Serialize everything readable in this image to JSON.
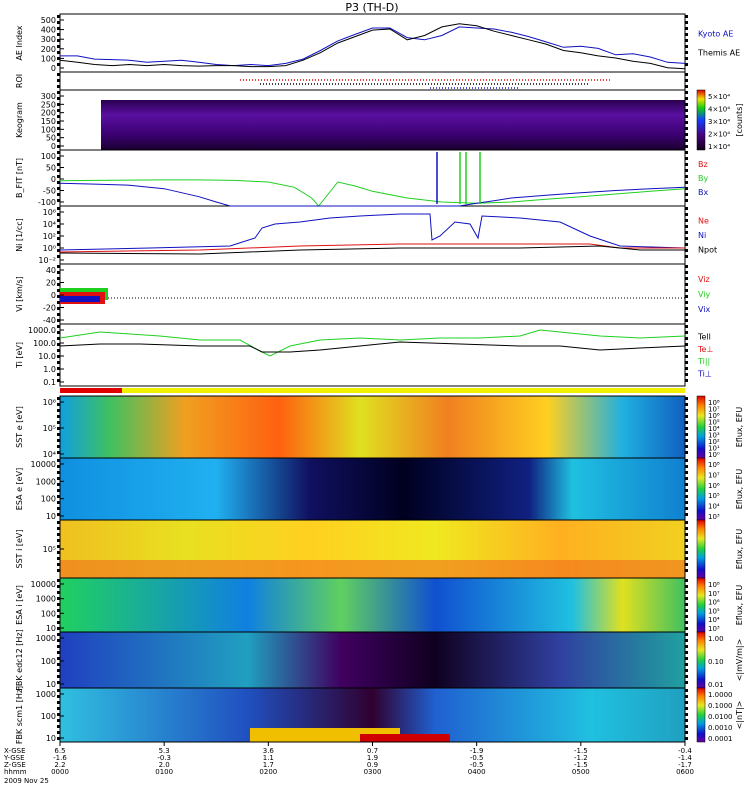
{
  "title": "P3 (TH-D)",
  "colors": {
    "blue": "#1010c0",
    "red": "#e01010",
    "green": "#20d020",
    "black": "#000000"
  },
  "chart_data": [
    {
      "type": "line",
      "id": "ae",
      "ylabel": "AE Index",
      "yticks": [
        "500",
        "400",
        "300",
        "200",
        "100",
        "0"
      ],
      "ylim": [
        0,
        540
      ],
      "series": [
        {
          "name": "Kyoto AE",
          "color": "blue",
          "x": [
            0,
            10,
            20,
            30,
            40,
            50,
            60,
            70,
            80,
            90,
            100,
            110,
            120,
            130,
            140,
            150,
            160,
            170,
            180,
            190,
            200,
            210,
            220,
            230,
            240,
            250,
            260,
            270,
            280,
            290,
            300,
            310,
            320,
            330,
            340,
            350,
            360
          ],
          "values": [
            150,
            150,
            120,
            115,
            110,
            90,
            100,
            110,
            90,
            70,
            60,
            70,
            60,
            80,
            120,
            200,
            290,
            350,
            410,
            410,
            320,
            300,
            340,
            420,
            410,
            400,
            370,
            330,
            280,
            230,
            240,
            220,
            160,
            170,
            140,
            90,
            80
          ]
        },
        {
          "name": "Themis AE",
          "color": "black",
          "x": [
            0,
            10,
            20,
            30,
            40,
            50,
            60,
            70,
            80,
            90,
            100,
            110,
            120,
            130,
            140,
            150,
            160,
            170,
            180,
            190,
            200,
            210,
            220,
            230,
            240,
            250,
            260,
            270,
            280,
            290,
            300,
            310,
            320,
            330,
            340,
            350,
            360
          ],
          "values": [
            110,
            90,
            70,
            60,
            70,
            60,
            70,
            60,
            55,
            60,
            60,
            50,
            50,
            60,
            110,
            180,
            270,
            330,
            390,
            400,
            300,
            340,
            420,
            450,
            430,
            380,
            340,
            300,
            260,
            200,
            180,
            150,
            130,
            100,
            80,
            40,
            30
          ]
        }
      ]
    },
    {
      "type": "line",
      "id": "roi",
      "ylabel": "ROI"
    },
    {
      "type": "heatmap",
      "id": "keogram",
      "ylabel": "Keogram",
      "yticks": [
        "300",
        "250",
        "200",
        "150",
        "100",
        "50",
        "0"
      ],
      "colorbar_ticks": [
        "5×10⁴",
        "4×10⁴",
        "3×10⁴",
        "2×10⁴",
        "1×10⁴"
      ],
      "colorbar_unit": "[counts]"
    },
    {
      "type": "line",
      "id": "bfield",
      "ylabel": "B_FIT [nT]",
      "yticks": [
        "100",
        "50",
        "0",
        "-50",
        "-100"
      ],
      "ylim": [
        -110,
        100
      ],
      "series": [
        {
          "name": "Bz",
          "color": "red",
          "x": [],
          "values": []
        },
        {
          "name": "By",
          "color": "green",
          "x": [
            0,
            20,
            40,
            60,
            80,
            100,
            120,
            135,
            145,
            149,
            160,
            170,
            180,
            200,
            220,
            240,
            260,
            280,
            300,
            320,
            340,
            360
          ],
          "values": [
            -15,
            -14,
            -13,
            -12,
            -12,
            -14,
            -20,
            -40,
            -80,
            -110,
            -20,
            -35,
            -55,
            -80,
            -95,
            -100,
            -95,
            -85,
            -75,
            -65,
            -55,
            -45
          ]
        },
        {
          "name": "Bx",
          "color": "blue",
          "x": [
            0,
            20,
            40,
            60,
            80,
            90,
            98,
            150,
            230,
            240,
            250,
            260,
            280,
            300,
            320,
            340,
            360
          ],
          "values": [
            -25,
            -28,
            -32,
            -45,
            -75,
            -95,
            -110,
            -110,
            -110,
            -100,
            -90,
            -80,
            -70,
            -60,
            -52,
            -45,
            -40
          ]
        }
      ]
    },
    {
      "type": "line",
      "id": "density",
      "ylabel": "Ni [1/cc]",
      "yticks": [
        "10⁶",
        "10⁴",
        "10²",
        "10⁰",
        "10⁻²"
      ],
      "series": [
        {
          "name": "Ne",
          "color": "red",
          "x": [],
          "values": []
        },
        {
          "name": "Ni",
          "color": "blue",
          "x": [],
          "values": []
        },
        {
          "name": "Npot",
          "color": "black",
          "x": [],
          "values": []
        }
      ]
    },
    {
      "type": "line",
      "id": "velocity",
      "ylabel": "Vi [km/s]",
      "yticks": [
        "40",
        "20",
        "0",
        "-20",
        "-40"
      ],
      "ylim": [
        -50,
        50
      ],
      "series": [
        {
          "name": "Viz",
          "color": "red",
          "x": [],
          "values": []
        },
        {
          "name": "Viy",
          "color": "green",
          "x": [],
          "values": []
        },
        {
          "name": "Vix",
          "color": "blue",
          "x": [],
          "values": []
        }
      ]
    },
    {
      "type": "line",
      "id": "temperature",
      "ylabel": "Ti [eV]",
      "yticks": [
        "1000.0",
        "100.0",
        "10.0",
        "1.0",
        "0.1"
      ],
      "series": [
        {
          "name": "Tell",
          "color": "black",
          "x": [],
          "values": []
        },
        {
          "name": "Te⊥",
          "color": "red",
          "x": [],
          "values": []
        },
        {
          "name": "Ti||",
          "color": "green",
          "x": [],
          "values": []
        },
        {
          "name": "Ti⊥",
          "color": "blue",
          "x": [],
          "values": []
        }
      ]
    },
    {
      "type": "heatmap",
      "id": "sst_e",
      "ylabel": "SST e [eV]",
      "yticks": [
        "10⁶",
        "10⁵",
        "10⁴"
      ],
      "colorbar_ticks": [
        "10⁸",
        "10⁷",
        "10⁶",
        "10⁵",
        "10⁴",
        "10³",
        "10²",
        "10¹",
        "10⁰"
      ],
      "colorbar_unit": "Eflux, EFU"
    },
    {
      "type": "heatmap",
      "id": "esa_e",
      "ylabel": "ESA e [eV]",
      "yticks": [
        "10000",
        "1000",
        "100",
        "10"
      ],
      "colorbar_ticks": [
        "10⁸",
        "10⁷",
        "10⁶",
        "10⁵",
        "10⁴",
        "10³"
      ],
      "colorbar_unit": "Eflux, EFU"
    },
    {
      "type": "heatmap",
      "id": "sst_i",
      "ylabel": "SST i [eV]",
      "yticks": [
        "10⁵"
      ],
      "colorbar_ticks": [],
      "colorbar_unit": "Eflux, EFU"
    },
    {
      "type": "heatmap",
      "id": "esa_i",
      "ylabel": "ESA i [eV]",
      "yticks": [
        "10000",
        "1000",
        "100",
        "10"
      ],
      "colorbar_ticks": [
        "10⁸",
        "10⁷",
        "10⁶",
        "10⁵",
        "10⁴",
        "10³"
      ],
      "colorbar_unit": "Eflux, EFU"
    },
    {
      "type": "heatmap",
      "id": "fbk_edc",
      "ylabel": "FBK edc12 [Hz]",
      "yticks": [
        "1000",
        "100",
        "10"
      ],
      "colorbar_ticks": [
        "1.00",
        "0.10",
        "0.01"
      ],
      "colorbar_unit": "<|mV/m|>"
    },
    {
      "type": "heatmap",
      "id": "fbk_scm",
      "ylabel": "FBK scm1 [Hz]",
      "yticks": [
        "1000",
        "100",
        "10"
      ],
      "colorbar_ticks": [
        "1.0000",
        "0.1000",
        "0.0100",
        "0.0010",
        "0.0001"
      ],
      "colorbar_unit": "<|nT|>"
    }
  ],
  "xaxis": {
    "row_labels": [
      "X-GSE",
      "Y-GSE",
      "Z-GSE",
      "hhmm",
      "2009 Nov 25"
    ],
    "ticks": [
      {
        "hhmm": "0000",
        "x": "6.5",
        "y": "-1.6",
        "z": "2.2"
      },
      {
        "hhmm": "0100",
        "x": "5.3",
        "y": "-0.3",
        "z": "2.0"
      },
      {
        "hhmm": "0200",
        "x": "3.6",
        "y": "1.1",
        "z": "1.7"
      },
      {
        "hhmm": "0300",
        "x": "0.7",
        "y": "1.9",
        "z": "0.9"
      },
      {
        "hhmm": "0400",
        "x": "-1.9",
        "y": "-0.5",
        "z": "-0.5"
      },
      {
        "hhmm": "0500",
        "x": "-1.5",
        "y": "-1.2",
        "z": "-1.5"
      },
      {
        "hhmm": "0600",
        "x": "-0.4",
        "y": "-1.4",
        "z": "-1.7"
      }
    ]
  }
}
